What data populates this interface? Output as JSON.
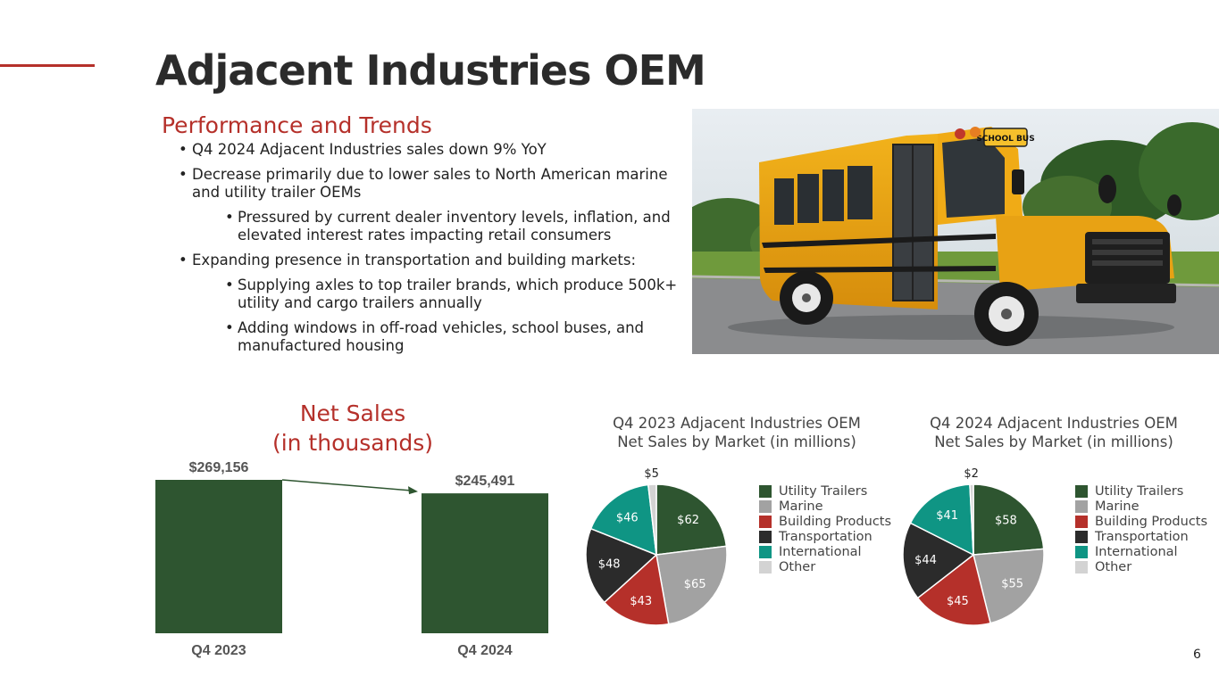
{
  "page": {
    "title": "Adjacent Industries OEM",
    "subtitle": "Performance and Trends",
    "page_number": "6",
    "accent_color": "#b5302a"
  },
  "bullets": [
    {
      "level": 1,
      "text": "Q4 2024 Adjacent Industries sales down 9% YoY"
    },
    {
      "level": 1,
      "text": "Decrease primarily due to lower sales to North American marine and utility trailer OEMs"
    },
    {
      "level": 2,
      "text": "Pressured by current dealer inventory levels, inflation, and elevated interest rates impacting retail consumers"
    },
    {
      "level": 1,
      "text": "Expanding presence in transportation and building markets:"
    },
    {
      "level": 2,
      "text": "Supplying axles to top trailer brands, which produce 500k+ utility and cargo trailers annually"
    },
    {
      "level": 2,
      "text": "Adding windows in off-road vehicles, school buses, and manufactured housing"
    }
  ],
  "photo": {
    "sign_text": "SCHOOL BUS"
  },
  "chart_data": [
    {
      "type": "bar",
      "title": "Net Sales (in thousands)",
      "title_lines": [
        "Net Sales",
        "(in thousands)"
      ],
      "categories": [
        "Q4 2023",
        "Q4 2024"
      ],
      "values": [
        269156,
        245491
      ],
      "value_labels": [
        "$269,156",
        "$245,491"
      ],
      "ylim": [
        0,
        269156
      ],
      "bar_color": "#2e5530",
      "arrow": "Q4 2023 to Q4 2024"
    },
    {
      "type": "pie",
      "title": "Q4 2023 Adjacent Industries OEM Net Sales by Market (in millions)",
      "title_lines": [
        "Q4 2023 Adjacent Industries OEM",
        "Net Sales by Market (in millions)"
      ],
      "labels": [
        "Utility Trailers",
        "Marine",
        "Building Products",
        "Transportation",
        "International",
        "Other"
      ],
      "values": [
        62,
        65,
        43,
        48,
        46,
        5
      ],
      "value_labels": [
        "$62",
        "$65",
        "$43",
        "$48",
        "$46",
        "$5"
      ],
      "colors": [
        "#2e5530",
        "#a2a2a2",
        "#b5302a",
        "#2b2b2b",
        "#0f9584",
        "#d3d3d3"
      ],
      "legend": "right"
    },
    {
      "type": "pie",
      "title": "Q4 2024 Adjacent Industries OEM Net Sales by Market (in millions)",
      "title_lines": [
        "Q4 2024 Adjacent Industries OEM",
        "Net Sales by Market (in millions)"
      ],
      "labels": [
        "Utility Trailers",
        "Marine",
        "Building Products",
        "Transportation",
        "International",
        "Other"
      ],
      "values": [
        58,
        55,
        45,
        44,
        41,
        2
      ],
      "value_labels": [
        "$58",
        "$55",
        "$45",
        "$44",
        "$41",
        "$2"
      ],
      "colors": [
        "#2e5530",
        "#a2a2a2",
        "#b5302a",
        "#2b2b2b",
        "#0f9584",
        "#d3d3d3"
      ],
      "legend": "right"
    }
  ]
}
